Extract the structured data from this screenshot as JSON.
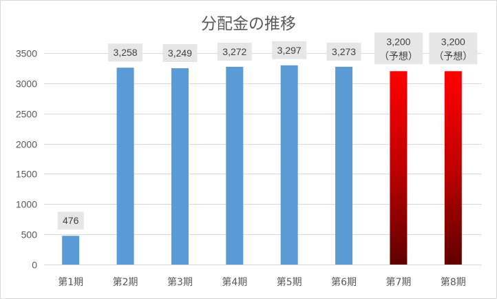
{
  "chart_data": {
    "type": "bar",
    "title": "分配金の推移",
    "categories": [
      "第1期",
      "第2期",
      "第3期",
      "第4期",
      "第5期",
      "第6期",
      "第7期",
      "第8期"
    ],
    "values": [
      476,
      3258,
      3249,
      3272,
      3297,
      3273,
      3200,
      3200
    ],
    "data_labels": [
      [
        "476"
      ],
      [
        "3,258"
      ],
      [
        "3,249"
      ],
      [
        "3,272"
      ],
      [
        "3,297"
      ],
      [
        "3,273"
      ],
      [
        "3,200",
        "（予想）"
      ],
      [
        "3,200",
        "（予想）"
      ]
    ],
    "ylim": [
      0,
      3500
    ],
    "yticks": [
      0,
      500,
      1000,
      1500,
      2000,
      2500,
      3000,
      3500
    ],
    "grid": true,
    "legend": false,
    "bar_fills": [
      [
        "#5B9BD5"
      ],
      [
        "#5B9BD5"
      ],
      [
        "#5B9BD5"
      ],
      [
        "#5B9BD5"
      ],
      [
        "#5B9BD5"
      ],
      [
        "#5B9BD5"
      ],
      [
        "#FF0000",
        "#C00000",
        "#600000"
      ],
      [
        "#FF0000",
        "#C00000",
        "#600000"
      ]
    ]
  },
  "colors": {
    "gridline": "#D9D9D9",
    "label_box": "#E7E6E6",
    "text": "#595959",
    "border": "#D9D9D9"
  }
}
